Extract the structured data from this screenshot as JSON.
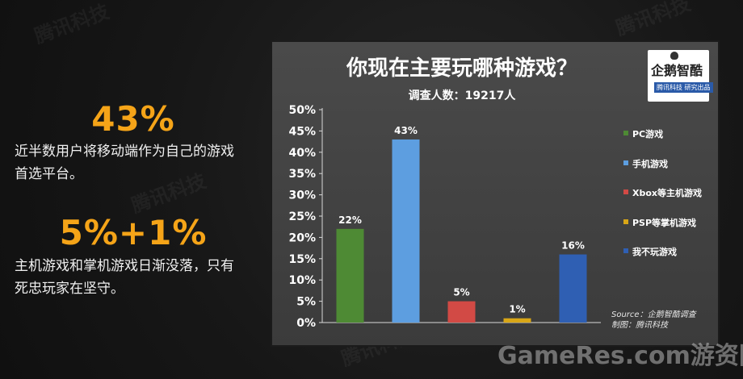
{
  "left": {
    "stat1": {
      "value": "43%",
      "text_line1": "近半数用户将移动端作为自己的游戏",
      "text_line2": "首选平台。"
    },
    "stat2": {
      "value": "5%+1%",
      "text_line1": "主机游戏和掌机游戏日渐没落，只有",
      "text_line2": "死忠玩家在坚守。"
    }
  },
  "logo": {
    "name": "企鹅智酷",
    "sub": "腾讯科技  研究出品"
  },
  "watermark": {
    "text": "GameRes.com游资网",
    "background_mark": "腾讯科技"
  },
  "chart_data": {
    "type": "bar",
    "title": "你现在主要玩哪种游戏？",
    "subtitle": "调查人数：19217人",
    "categories": [
      "PC游戏",
      "手机游戏",
      "Xbox等主机游戏",
      "PSP等掌机游戏",
      "我不玩游戏"
    ],
    "values": [
      22,
      43,
      5,
      1,
      16
    ],
    "data_labels": [
      "22%",
      "43%",
      "5%",
      "1%",
      "16%"
    ],
    "colors": [
      "#4e8a34",
      "#5d9ee0",
      "#d24a45",
      "#d8a617",
      "#2f5fb3"
    ],
    "ylim": [
      0,
      50
    ],
    "yticks": [
      "0%",
      "5%",
      "10%",
      "15%",
      "20%",
      "25%",
      "30%",
      "35%",
      "40%",
      "45%",
      "50%"
    ],
    "legend_position": "right",
    "grid": false,
    "source_line1": "Source：企鹅智酷调查",
    "source_line2": "制图：腾讯科技"
  }
}
